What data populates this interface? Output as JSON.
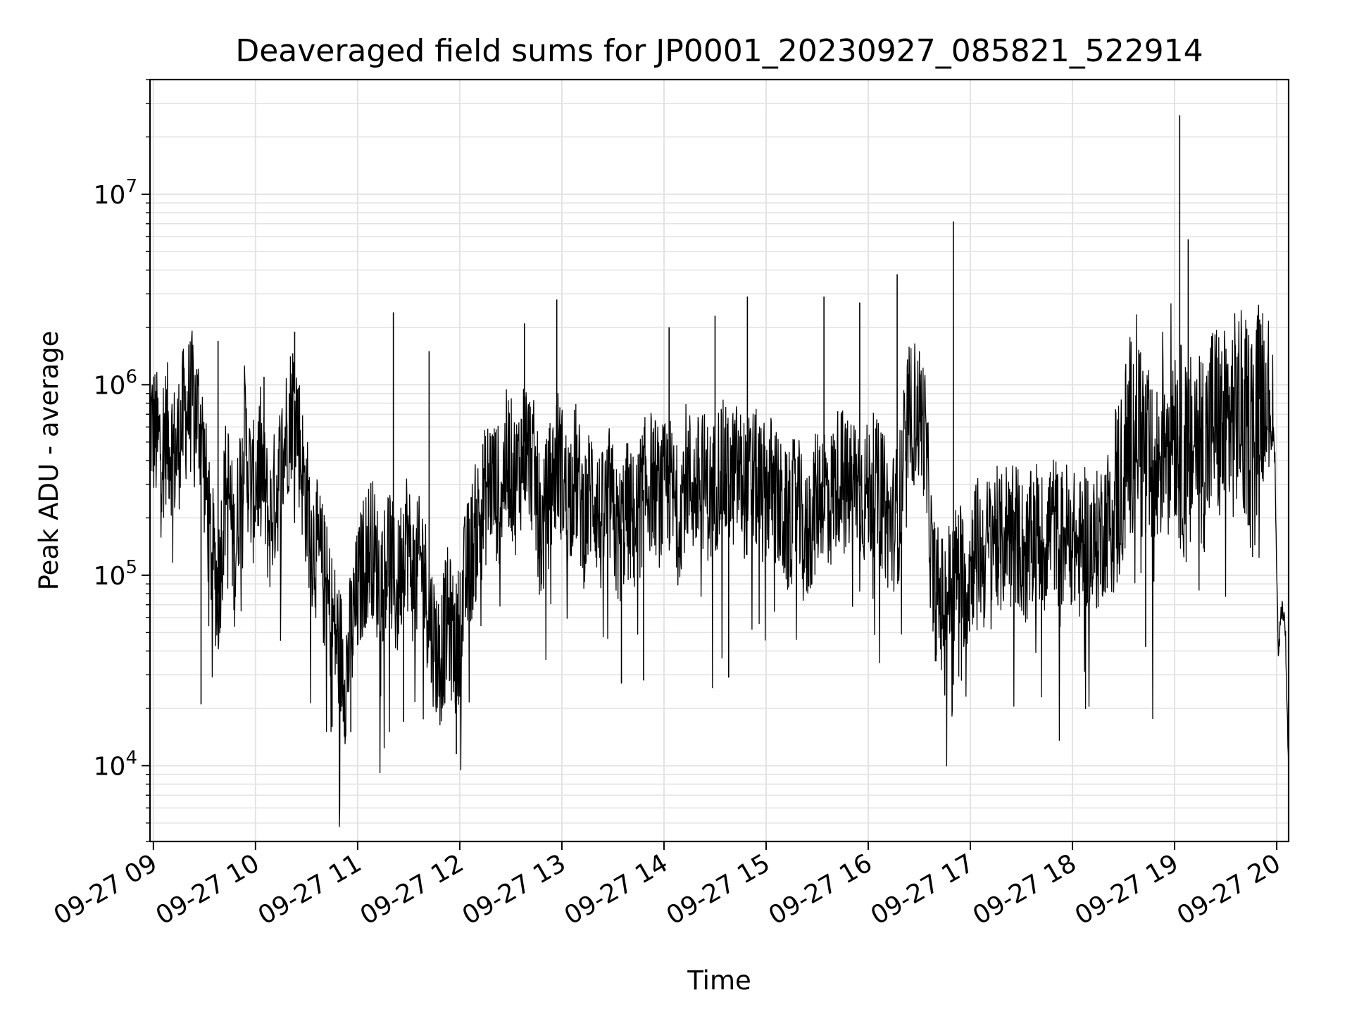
{
  "chart_data": {
    "type": "line",
    "title": "Deaveraged field sums for JP0001_20230927_085821_522914",
    "xlabel": "Time",
    "ylabel": "Peak ADU - average",
    "yscale": "log",
    "ylim": [
      4000,
      40000000
    ],
    "xlim": [
      "2023-09-27 08:58",
      "2023-09-27 20:07"
    ],
    "grid": true,
    "x_tick_labels": [
      "09-27 09",
      "09-27 10",
      "09-27 11",
      "09-27 12",
      "09-27 13",
      "09-27 14",
      "09-27 15",
      "09-27 16",
      "09-27 17",
      "09-27 18",
      "09-27 19",
      "09-27 20"
    ],
    "x_ticks": [
      "2023-09-27 09:00",
      "2023-09-27 10:00",
      "2023-09-27 11:00",
      "2023-09-27 12:00",
      "2023-09-27 13:00",
      "2023-09-27 14:00",
      "2023-09-27 15:00",
      "2023-09-27 16:00",
      "2023-09-27 17:00",
      "2023-09-27 18:00",
      "2023-09-27 19:00",
      "2023-09-27 20:00"
    ],
    "y_ticks": [
      10000,
      100000,
      1000000,
      10000000
    ],
    "y_tick_labels": [
      {
        "base": "10",
        "exp": "4"
      },
      {
        "base": "10",
        "exp": "5"
      },
      {
        "base": "10",
        "exp": "6"
      },
      {
        "base": "10",
        "exp": "7"
      }
    ],
    "series": [
      {
        "color": "#000000",
        "points": [
          [
            "2023-09-27 08:58",
            650000
          ],
          [
            "2023-09-27 09:03",
            480000
          ],
          [
            "2023-09-27 09:08",
            560000
          ],
          [
            "2023-09-27 09:13",
            420000
          ],
          [
            "2023-09-27 09:18",
            700000
          ],
          [
            "2023-09-27 09:23",
            820000
          ],
          [
            "2023-09-27 09:28",
            620000
          ],
          [
            "2023-09-27 09:33",
            160000
          ],
          [
            "2023-09-27 09:38",
            80000
          ],
          [
            "2023-09-27 09:43",
            350000
          ],
          [
            "2023-09-27 09:48",
            120000
          ],
          [
            "2023-09-27 09:53",
            600000
          ],
          [
            "2023-09-27 09:58",
            250000
          ],
          [
            "2023-09-27 10:03",
            420000
          ],
          [
            "2023-09-27 10:08",
            180000
          ],
          [
            "2023-09-27 10:13",
            300000
          ],
          [
            "2023-09-27 10:18",
            550000
          ],
          [
            "2023-09-27 10:23",
            900000
          ],
          [
            "2023-09-27 10:28",
            320000
          ],
          [
            "2023-09-27 10:33",
            160000
          ],
          [
            "2023-09-27 10:38",
            120000
          ],
          [
            "2023-09-27 10:43",
            70000
          ],
          [
            "2023-09-27 10:48",
            45000
          ],
          [
            "2023-09-27 10:53",
            30000
          ],
          [
            "2023-09-27 10:58",
            60000
          ],
          [
            "2023-09-27 11:03",
            110000
          ],
          [
            "2023-09-27 11:08",
            150000
          ],
          [
            "2023-09-27 11:13",
            90000
          ],
          [
            "2023-09-27 11:18",
            140000
          ],
          [
            "2023-09-27 11:23",
            75000
          ],
          [
            "2023-09-27 11:28",
            180000
          ],
          [
            "2023-09-27 11:33",
            95000
          ],
          [
            "2023-09-27 11:38",
            120000
          ],
          [
            "2023-09-27 11:43",
            55000
          ],
          [
            "2023-09-27 11:48",
            35000
          ],
          [
            "2023-09-27 11:53",
            60000
          ],
          [
            "2023-09-27 11:58",
            40000
          ],
          [
            "2023-09-27 12:03",
            90000
          ],
          [
            "2023-09-27 12:08",
            150000
          ],
          [
            "2023-09-27 12:13",
            220000
          ],
          [
            "2023-09-27 12:18",
            320000
          ],
          [
            "2023-09-27 12:23",
            260000
          ],
          [
            "2023-09-27 12:28",
            420000
          ],
          [
            "2023-09-27 12:33",
            300000
          ],
          [
            "2023-09-27 12:38",
            500000
          ],
          [
            "2023-09-27 12:43",
            380000
          ],
          [
            "2023-09-27 12:48",
            160000
          ],
          [
            "2023-09-27 12:53",
            280000
          ],
          [
            "2023-09-27 12:58",
            420000
          ],
          [
            "2023-09-27 13:03",
            250000
          ],
          [
            "2023-09-27 13:08",
            350000
          ],
          [
            "2023-09-27 13:13",
            200000
          ],
          [
            "2023-09-27 13:18",
            300000
          ],
          [
            "2023-09-27 13:23",
            180000
          ],
          [
            "2023-09-27 13:28",
            260000
          ],
          [
            "2023-09-27 13:33",
            150000
          ],
          [
            "2023-09-27 13:38",
            220000
          ],
          [
            "2023-09-27 13:43",
            180000
          ],
          [
            "2023-09-27 13:48",
            280000
          ],
          [
            "2023-09-27 13:53",
            320000
          ],
          [
            "2023-09-27 13:58",
            250000
          ],
          [
            "2023-09-27 14:03",
            300000
          ],
          [
            "2023-09-27 14:08",
            200000
          ],
          [
            "2023-09-27 14:13",
            350000
          ],
          [
            "2023-09-27 14:18",
            280000
          ],
          [
            "2023-09-27 14:23",
            320000
          ],
          [
            "2023-09-27 14:28",
            250000
          ],
          [
            "2023-09-27 14:33",
            380000
          ],
          [
            "2023-09-27 14:38",
            300000
          ],
          [
            "2023-09-27 14:43",
            350000
          ],
          [
            "2023-09-27 14:48",
            280000
          ],
          [
            "2023-09-27 14:53",
            330000
          ],
          [
            "2023-09-27 14:58",
            260000
          ],
          [
            "2023-09-27 15:03",
            300000
          ],
          [
            "2023-09-27 15:08",
            220000
          ],
          [
            "2023-09-27 15:13",
            180000
          ],
          [
            "2023-09-27 15:18",
            250000
          ],
          [
            "2023-09-27 15:23",
            140000
          ],
          [
            "2023-09-27 15:28",
            220000
          ],
          [
            "2023-09-27 15:33",
            300000
          ],
          [
            "2023-09-27 15:38",
            250000
          ],
          [
            "2023-09-27 15:43",
            350000
          ],
          [
            "2023-09-27 15:48",
            280000
          ],
          [
            "2023-09-27 15:53",
            320000
          ],
          [
            "2023-09-27 15:58",
            260000
          ],
          [
            "2023-09-27 16:03",
            300000
          ],
          [
            "2023-09-27 16:08",
            250000
          ],
          [
            "2023-09-27 16:13",
            180000
          ],
          [
            "2023-09-27 16:18",
            220000
          ],
          [
            "2023-09-27 16:23",
            650000
          ],
          [
            "2023-09-27 16:28",
            750000
          ],
          [
            "2023-09-27 16:33",
            600000
          ],
          [
            "2023-09-27 16:38",
            90000
          ],
          [
            "2023-09-27 16:43",
            70000
          ],
          [
            "2023-09-27 16:48",
            85000
          ],
          [
            "2023-09-27 16:53",
            110000
          ],
          [
            "2023-09-27 16:58",
            90000
          ],
          [
            "2023-09-27 17:03",
            150000
          ],
          [
            "2023-09-27 17:08",
            120000
          ],
          [
            "2023-09-27 17:13",
            180000
          ],
          [
            "2023-09-27 17:18",
            140000
          ],
          [
            "2023-09-27 17:23",
            200000
          ],
          [
            "2023-09-27 17:28",
            160000
          ],
          [
            "2023-09-27 17:33",
            120000
          ],
          [
            "2023-09-27 17:38",
            180000
          ],
          [
            "2023-09-27 17:43",
            140000
          ],
          [
            "2023-09-27 17:48",
            200000
          ],
          [
            "2023-09-27 17:53",
            150000
          ],
          [
            "2023-09-27 17:58",
            180000
          ],
          [
            "2023-09-27 18:03",
            130000
          ],
          [
            "2023-09-27 18:08",
            160000
          ],
          [
            "2023-09-27 18:13",
            140000
          ],
          [
            "2023-09-27 18:18",
            180000
          ],
          [
            "2023-09-27 18:23",
            220000
          ],
          [
            "2023-09-27 18:28",
            300000
          ],
          [
            "2023-09-27 18:33",
            500000
          ],
          [
            "2023-09-27 18:38",
            700000
          ],
          [
            "2023-09-27 18:43",
            400000
          ],
          [
            "2023-09-27 18:48",
            250000
          ],
          [
            "2023-09-27 18:53",
            600000
          ],
          [
            "2023-09-27 18:58",
            800000
          ],
          [
            "2023-09-27 19:03",
            500000
          ],
          [
            "2023-09-27 19:08",
            350000
          ],
          [
            "2023-09-27 19:13",
            600000
          ],
          [
            "2023-09-27 19:18",
            450000
          ],
          [
            "2023-09-27 19:23",
            700000
          ],
          [
            "2023-09-27 19:28",
            550000
          ],
          [
            "2023-09-27 19:33",
            650000
          ],
          [
            "2023-09-27 19:38",
            750000
          ],
          [
            "2023-09-27 19:43",
            600000
          ],
          [
            "2023-09-27 19:48",
            700000
          ],
          [
            "2023-09-27 19:53",
            1100000
          ],
          [
            "2023-09-27 19:55",
            1000000
          ],
          [
            "2023-09-27 19:57",
            800000
          ],
          [
            "2023-09-27 19:59",
            400000
          ],
          [
            "2023-09-27 20:00",
            100000
          ],
          [
            "2023-09-27 20:01",
            40000
          ],
          [
            "2023-09-27 20:03",
            70000
          ],
          [
            "2023-09-27 20:05",
            55000
          ],
          [
            "2023-09-27 20:07",
            9000
          ]
        ],
        "spikes": [
          [
            "2023-09-27 09:38",
            1700000
          ],
          [
            "2023-09-27 10:05",
            1100000
          ],
          [
            "2023-09-27 10:23",
            1900000
          ],
          [
            "2023-09-27 11:21",
            2400000
          ],
          [
            "2023-09-27 11:42",
            1500000
          ],
          [
            "2023-09-27 12:38",
            2100000
          ],
          [
            "2023-09-27 12:57",
            2800000
          ],
          [
            "2023-09-27 14:03",
            2000000
          ],
          [
            "2023-09-27 14:30",
            2300000
          ],
          [
            "2023-09-27 14:49",
            2900000
          ],
          [
            "2023-09-27 15:34",
            2900000
          ],
          [
            "2023-09-27 15:55",
            2700000
          ],
          [
            "2023-09-27 16:17",
            3800000
          ],
          [
            "2023-09-27 16:50",
            7200000
          ],
          [
            "2023-09-27 19:03",
            26000000
          ],
          [
            "2023-09-27 19:08",
            5800000
          ],
          [
            "2023-09-27 19:50",
            2200000
          ]
        ],
        "dips": [
          [
            "2023-09-27 09:28",
            21000
          ],
          [
            "2023-09-27 10:45",
            16000
          ],
          [
            "2023-09-27 10:56",
            15000
          ],
          [
            "2023-09-27 11:27",
            17000
          ],
          [
            "2023-09-27 11:58",
            11500
          ],
          [
            "2023-09-27 13:35",
            27000
          ],
          [
            "2023-09-27 13:48",
            28000
          ],
          [
            "2023-09-27 14:38",
            29000
          ],
          [
            "2023-09-27 16:40",
            38000
          ],
          [
            "2023-09-27 18:43",
            42000
          ],
          [
            "2023-09-27 20:07",
            9000
          ]
        ]
      }
    ]
  }
}
